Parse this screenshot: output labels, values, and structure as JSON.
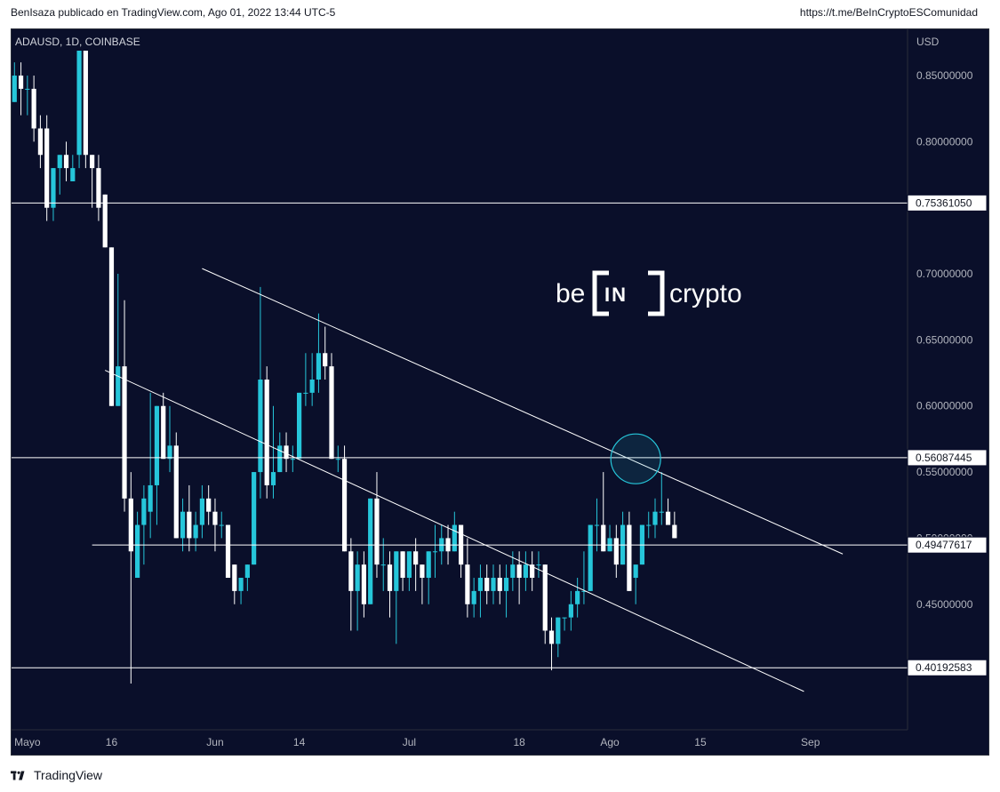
{
  "header": {
    "publisher": "BenIsaza publicado en TradingView.com, Ago 01, 2022 13:44 UTC-5",
    "link": "https://t.me/BeInCryptoESComunidad"
  },
  "footer": {
    "brand": "TradingView"
  },
  "watermark": {
    "left": "be",
    "middle": "IN",
    "right": "crypto"
  },
  "chart_data": {
    "type": "candlestick",
    "symbol": "ADAUSD, 1D, COINBASE",
    "currency": "USD",
    "y_axis_ticks": [
      "0.85000000",
      "0.80000000",
      "0.70000000",
      "0.65000000",
      "0.60000000",
      "0.55000000",
      "0.50000000",
      "0.45000000"
    ],
    "ylim": [
      0.355,
      0.885
    ],
    "x_axis_ticks": [
      {
        "label": "Mayo",
        "day": 3
      },
      {
        "label": "16",
        "day": 16
      },
      {
        "label": "Jun",
        "day": 32
      },
      {
        "label": "14",
        "day": 45
      },
      {
        "label": "Jul",
        "day": 62
      },
      {
        "label": "18",
        "day": 79
      },
      {
        "label": "Ago",
        "day": 93
      },
      {
        "label": "15",
        "day": 107
      },
      {
        "label": "Sep",
        "day": 124
      }
    ],
    "horizontal_levels": [
      {
        "label": "0.75361050",
        "value": 0.7536105,
        "x_from_day": -1
      },
      {
        "label": "0.56087445",
        "value": 0.56087445,
        "x_from_day": -1
      },
      {
        "label": "0.49477617",
        "value": 0.49477617,
        "x_from_day": 13
      },
      {
        "label": "0.40192583",
        "value": 0.40192583,
        "x_from_day": -1
      }
    ],
    "trendlines": [
      {
        "from": {
          "day": 30,
          "value": 0.704
        },
        "to": {
          "day": 129,
          "value": 0.488
        }
      },
      {
        "from": {
          "day": 15,
          "value": 0.627
        },
        "to": {
          "day": 123,
          "value": 0.384
        }
      }
    ],
    "circle_marker": {
      "day": 97,
      "value": 0.56
    },
    "candles": [
      {
        "d": 0,
        "o": 0.85,
        "h": 0.88,
        "l": 0.83,
        "c": 0.83
      },
      {
        "d": 1,
        "o": 0.83,
        "h": 0.86,
        "l": 0.83,
        "c": 0.85
      },
      {
        "d": 2,
        "o": 0.85,
        "h": 0.86,
        "l": 0.82,
        "c": 0.84
      },
      {
        "d": 3,
        "o": 0.84,
        "h": 0.85,
        "l": 0.82,
        "c": 0.84
      },
      {
        "d": 4,
        "o": 0.84,
        "h": 0.85,
        "l": 0.8,
        "c": 0.81
      },
      {
        "d": 5,
        "o": 0.81,
        "h": 0.82,
        "l": 0.78,
        "c": 0.79
      },
      {
        "d": 6,
        "o": 0.81,
        "h": 0.82,
        "l": 0.74,
        "c": 0.75
      },
      {
        "d": 7,
        "o": 0.75,
        "h": 0.78,
        "l": 0.74,
        "c": 0.78
      },
      {
        "d": 8,
        "o": 0.78,
        "h": 0.79,
        "l": 0.76,
        "c": 0.79
      },
      {
        "d": 9,
        "o": 0.79,
        "h": 0.8,
        "l": 0.77,
        "c": 0.78
      },
      {
        "d": 10,
        "o": 0.77,
        "h": 0.79,
        "l": 0.77,
        "c": 0.78
      },
      {
        "d": 11,
        "o": 0.79,
        "h": 0.88,
        "l": 0.78,
        "c": 0.88
      },
      {
        "d": 12,
        "o": 0.88,
        "h": 0.88,
        "l": 0.78,
        "c": 0.79
      },
      {
        "d": 13,
        "o": 0.79,
        "h": 0.79,
        "l": 0.75,
        "c": 0.78
      },
      {
        "d": 14,
        "o": 0.78,
        "h": 0.79,
        "l": 0.74,
        "c": 0.75
      },
      {
        "d": 15,
        "o": 0.76,
        "h": 0.76,
        "l": 0.72,
        "c": 0.72
      },
      {
        "d": 16,
        "o": 0.72,
        "h": 0.72,
        "l": 0.6,
        "c": 0.6
      },
      {
        "d": 17,
        "o": 0.6,
        "h": 0.7,
        "l": 0.6,
        "c": 0.63
      },
      {
        "d": 18,
        "o": 0.63,
        "h": 0.68,
        "l": 0.52,
        "c": 0.53
      },
      {
        "d": 19,
        "o": 0.53,
        "h": 0.55,
        "l": 0.39,
        "c": 0.49
      },
      {
        "d": 20,
        "o": 0.47,
        "h": 0.52,
        "l": 0.47,
        "c": 0.51
      },
      {
        "d": 21,
        "o": 0.51,
        "h": 0.54,
        "l": 0.48,
        "c": 0.53
      },
      {
        "d": 22,
        "o": 0.52,
        "h": 0.61,
        "l": 0.5,
        "c": 0.54
      },
      {
        "d": 23,
        "o": 0.54,
        "h": 0.6,
        "l": 0.51,
        "c": 0.6
      },
      {
        "d": 24,
        "o": 0.6,
        "h": 0.61,
        "l": 0.56,
        "c": 0.56
      },
      {
        "d": 25,
        "o": 0.56,
        "h": 0.6,
        "l": 0.55,
        "c": 0.57
      },
      {
        "d": 26,
        "o": 0.57,
        "h": 0.58,
        "l": 0.5,
        "c": 0.5
      },
      {
        "d": 27,
        "o": 0.5,
        "h": 0.53,
        "l": 0.49,
        "c": 0.52
      },
      {
        "d": 28,
        "o": 0.52,
        "h": 0.54,
        "l": 0.49,
        "c": 0.5
      },
      {
        "d": 29,
        "o": 0.5,
        "h": 0.52,
        "l": 0.49,
        "c": 0.51
      },
      {
        "d": 30,
        "o": 0.51,
        "h": 0.54,
        "l": 0.5,
        "c": 0.53
      },
      {
        "d": 31,
        "o": 0.53,
        "h": 0.54,
        "l": 0.51,
        "c": 0.52
      },
      {
        "d": 32,
        "o": 0.52,
        "h": 0.53,
        "l": 0.49,
        "c": 0.51
      },
      {
        "d": 33,
        "o": 0.51,
        "h": 0.52,
        "l": 0.5,
        "c": 0.51
      },
      {
        "d": 34,
        "o": 0.51,
        "h": 0.51,
        "l": 0.47,
        "c": 0.47
      },
      {
        "d": 35,
        "o": 0.48,
        "h": 0.48,
        "l": 0.45,
        "c": 0.46
      },
      {
        "d": 36,
        "o": 0.46,
        "h": 0.47,
        "l": 0.45,
        "c": 0.47
      },
      {
        "d": 37,
        "o": 0.47,
        "h": 0.48,
        "l": 0.46,
        "c": 0.48
      },
      {
        "d": 38,
        "o": 0.48,
        "h": 0.55,
        "l": 0.48,
        "c": 0.55
      },
      {
        "d": 39,
        "o": 0.55,
        "h": 0.69,
        "l": 0.53,
        "c": 0.62
      },
      {
        "d": 40,
        "o": 0.62,
        "h": 0.63,
        "l": 0.53,
        "c": 0.54
      },
      {
        "d": 41,
        "o": 0.54,
        "h": 0.6,
        "l": 0.53,
        "c": 0.55
      },
      {
        "d": 42,
        "o": 0.55,
        "h": 0.58,
        "l": 0.55,
        "c": 0.57
      },
      {
        "d": 43,
        "o": 0.57,
        "h": 0.58,
        "l": 0.55,
        "c": 0.56
      },
      {
        "d": 44,
        "o": 0.56,
        "h": 0.57,
        "l": 0.55,
        "c": 0.56
      },
      {
        "d": 45,
        "o": 0.56,
        "h": 0.61,
        "l": 0.56,
        "c": 0.61
      },
      {
        "d": 46,
        "o": 0.61,
        "h": 0.64,
        "l": 0.6,
        "c": 0.61
      },
      {
        "d": 47,
        "o": 0.61,
        "h": 0.64,
        "l": 0.6,
        "c": 0.62
      },
      {
        "d": 48,
        "o": 0.62,
        "h": 0.67,
        "l": 0.61,
        "c": 0.64
      },
      {
        "d": 49,
        "o": 0.64,
        "h": 0.66,
        "l": 0.62,
        "c": 0.63
      },
      {
        "d": 50,
        "o": 0.63,
        "h": 0.64,
        "l": 0.56,
        "c": 0.56
      },
      {
        "d": 51,
        "o": 0.56,
        "h": 0.57,
        "l": 0.55,
        "c": 0.56
      },
      {
        "d": 52,
        "o": 0.56,
        "h": 0.57,
        "l": 0.49,
        "c": 0.49
      },
      {
        "d": 53,
        "o": 0.49,
        "h": 0.5,
        "l": 0.43,
        "c": 0.46
      },
      {
        "d": 54,
        "o": 0.46,
        "h": 0.49,
        "l": 0.43,
        "c": 0.48
      },
      {
        "d": 55,
        "o": 0.48,
        "h": 0.49,
        "l": 0.44,
        "c": 0.45
      },
      {
        "d": 56,
        "o": 0.45,
        "h": 0.53,
        "l": 0.45,
        "c": 0.53
      },
      {
        "d": 57,
        "o": 0.53,
        "h": 0.55,
        "l": 0.47,
        "c": 0.48
      },
      {
        "d": 58,
        "o": 0.48,
        "h": 0.5,
        "l": 0.46,
        "c": 0.48
      },
      {
        "d": 59,
        "o": 0.48,
        "h": 0.49,
        "l": 0.44,
        "c": 0.46
      },
      {
        "d": 60,
        "o": 0.46,
        "h": 0.49,
        "l": 0.42,
        "c": 0.49
      },
      {
        "d": 61,
        "o": 0.49,
        "h": 0.49,
        "l": 0.46,
        "c": 0.47
      },
      {
        "d": 62,
        "o": 0.47,
        "h": 0.49,
        "l": 0.46,
        "c": 0.49
      },
      {
        "d": 63,
        "o": 0.49,
        "h": 0.5,
        "l": 0.46,
        "c": 0.48
      },
      {
        "d": 64,
        "o": 0.48,
        "h": 0.48,
        "l": 0.45,
        "c": 0.47
      },
      {
        "d": 65,
        "o": 0.47,
        "h": 0.49,
        "l": 0.45,
        "c": 0.49
      },
      {
        "d": 66,
        "o": 0.49,
        "h": 0.51,
        "l": 0.47,
        "c": 0.49
      },
      {
        "d": 67,
        "o": 0.49,
        "h": 0.51,
        "l": 0.48,
        "c": 0.5
      },
      {
        "d": 68,
        "o": 0.5,
        "h": 0.51,
        "l": 0.48,
        "c": 0.49
      },
      {
        "d": 69,
        "o": 0.49,
        "h": 0.52,
        "l": 0.49,
        "c": 0.51
      },
      {
        "d": 70,
        "o": 0.51,
        "h": 0.51,
        "l": 0.47,
        "c": 0.48
      },
      {
        "d": 71,
        "o": 0.48,
        "h": 0.5,
        "l": 0.44,
        "c": 0.45
      },
      {
        "d": 72,
        "o": 0.45,
        "h": 0.47,
        "l": 0.44,
        "c": 0.46
      },
      {
        "d": 73,
        "o": 0.46,
        "h": 0.48,
        "l": 0.44,
        "c": 0.47
      },
      {
        "d": 74,
        "o": 0.47,
        "h": 0.48,
        "l": 0.45,
        "c": 0.46
      },
      {
        "d": 75,
        "o": 0.46,
        "h": 0.48,
        "l": 0.45,
        "c": 0.47
      },
      {
        "d": 76,
        "o": 0.47,
        "h": 0.48,
        "l": 0.45,
        "c": 0.46
      },
      {
        "d": 77,
        "o": 0.46,
        "h": 0.48,
        "l": 0.44,
        "c": 0.47
      },
      {
        "d": 78,
        "o": 0.47,
        "h": 0.49,
        "l": 0.46,
        "c": 0.48
      },
      {
        "d": 79,
        "o": 0.48,
        "h": 0.49,
        "l": 0.45,
        "c": 0.47
      },
      {
        "d": 80,
        "o": 0.47,
        "h": 0.49,
        "l": 0.46,
        "c": 0.48
      },
      {
        "d": 81,
        "o": 0.48,
        "h": 0.49,
        "l": 0.46,
        "c": 0.47
      },
      {
        "d": 82,
        "o": 0.48,
        "h": 0.49,
        "l": 0.47,
        "c": 0.48
      },
      {
        "d": 83,
        "o": 0.48,
        "h": 0.48,
        "l": 0.42,
        "c": 0.43
      },
      {
        "d": 84,
        "o": 0.43,
        "h": 0.44,
        "l": 0.4,
        "c": 0.42
      },
      {
        "d": 85,
        "o": 0.42,
        "h": 0.44,
        "l": 0.41,
        "c": 0.44
      },
      {
        "d": 86,
        "o": 0.44,
        "h": 0.44,
        "l": 0.43,
        "c": 0.44
      },
      {
        "d": 87,
        "o": 0.44,
        "h": 0.46,
        "l": 0.43,
        "c": 0.45
      },
      {
        "d": 88,
        "o": 0.45,
        "h": 0.47,
        "l": 0.44,
        "c": 0.46
      },
      {
        "d": 89,
        "o": 0.46,
        "h": 0.49,
        "l": 0.45,
        "c": 0.46
      },
      {
        "d": 90,
        "o": 0.46,
        "h": 0.51,
        "l": 0.46,
        "c": 0.51
      },
      {
        "d": 91,
        "o": 0.51,
        "h": 0.53,
        "l": 0.49,
        "c": 0.51
      },
      {
        "d": 92,
        "o": 0.51,
        "h": 0.55,
        "l": 0.49,
        "c": 0.49
      },
      {
        "d": 93,
        "o": 0.49,
        "h": 0.51,
        "l": 0.49,
        "c": 0.5
      },
      {
        "d": 94,
        "o": 0.5,
        "h": 0.51,
        "l": 0.47,
        "c": 0.48
      },
      {
        "d": 95,
        "o": 0.48,
        "h": 0.52,
        "l": 0.48,
        "c": 0.51
      },
      {
        "d": 96,
        "o": 0.51,
        "h": 0.52,
        "l": 0.46,
        "c": 0.46
      },
      {
        "d": 97,
        "o": 0.47,
        "h": 0.48,
        "l": 0.45,
        "c": 0.48
      },
      {
        "d": 98,
        "o": 0.48,
        "h": 0.51,
        "l": 0.48,
        "c": 0.51
      },
      {
        "d": 99,
        "o": 0.51,
        "h": 0.52,
        "l": 0.5,
        "c": 0.51
      },
      {
        "d": 100,
        "o": 0.51,
        "h": 0.53,
        "l": 0.5,
        "c": 0.52
      },
      {
        "d": 101,
        "o": 0.52,
        "h": 0.55,
        "l": 0.51,
        "c": 0.52
      },
      {
        "d": 102,
        "o": 0.52,
        "h": 0.53,
        "l": 0.51,
        "c": 0.51
      },
      {
        "d": 103,
        "o": 0.51,
        "h": 0.52,
        "l": 0.5,
        "c": 0.5
      }
    ],
    "colors": {
      "background": "#0a0f2a",
      "up": "#26c6da",
      "down": "#ffffff",
      "line": "#ffffff",
      "circle": "#26c6da"
    }
  }
}
